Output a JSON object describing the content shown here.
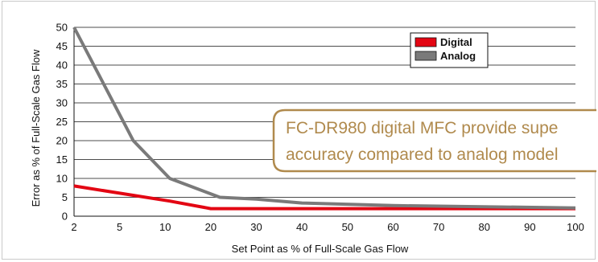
{
  "chart_data": {
    "type": "line",
    "xlabel": "Set Point as % of Full-Scale Gas Flow",
    "ylabel": "Error as % of Full-Scale Gas Flow",
    "x_ticks": [
      2,
      5,
      10,
      20,
      30,
      40,
      50,
      60,
      70,
      80,
      90,
      100
    ],
    "y_ticks": [
      0,
      5,
      10,
      15,
      20,
      25,
      30,
      35,
      40,
      45,
      50
    ],
    "ylim": [
      0,
      50
    ],
    "grid": "horizontal",
    "legend_position": "top-right",
    "series": [
      {
        "name": "Digital",
        "color": "#e30613",
        "x": [
          2,
          11,
          20,
          100
        ],
        "y": [
          8,
          4,
          2,
          2
        ]
      },
      {
        "name": "Analog",
        "color": "#7a7a7a",
        "x": [
          2,
          6.5,
          11,
          22,
          30,
          40,
          60,
          100
        ],
        "y": [
          50,
          20,
          10,
          5,
          4.5,
          3.5,
          2.8,
          2.2
        ]
      }
    ],
    "annotation": {
      "line1": "FC-DR980 digital MFC provide supe",
      "line2": "accuracy compared to analog model",
      "color": "#b08a4d"
    }
  }
}
